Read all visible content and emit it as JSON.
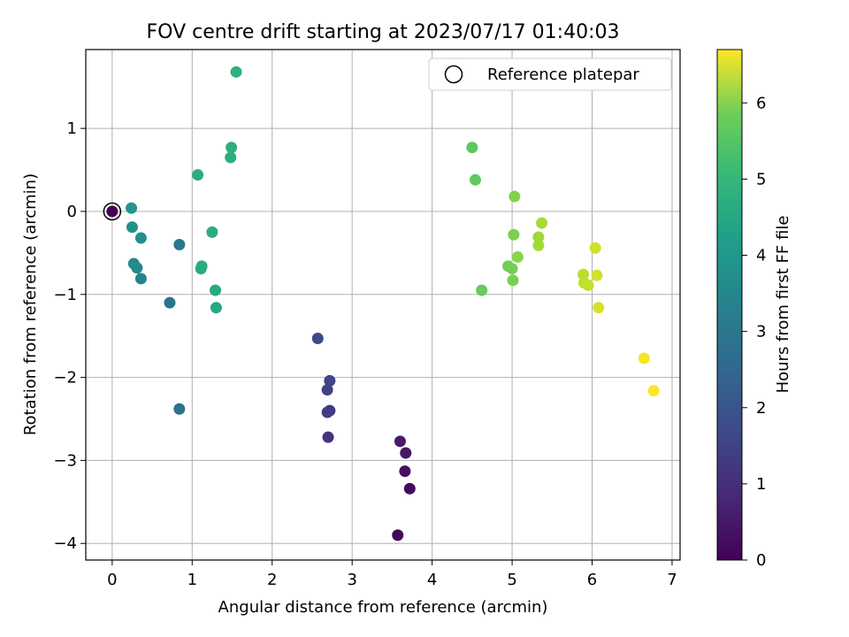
{
  "chart_data": {
    "type": "scatter",
    "title": "FOV centre drift starting at 2023/07/17 01:40:03",
    "xlabel": "Angular distance from reference (arcmin)",
    "ylabel": "Rotation from reference (arcmin)",
    "xlim": [
      -0.33,
      7.1
    ],
    "ylim": [
      -4.2,
      1.95
    ],
    "xticks": [
      0,
      1,
      2,
      3,
      4,
      5,
      6,
      7
    ],
    "yticks": [
      1,
      0,
      -1,
      -2,
      -3,
      -4
    ],
    "xtick_labels": [
      "0",
      "1",
      "2",
      "3",
      "4",
      "5",
      "6",
      "7"
    ],
    "ytick_labels": [
      "1",
      "0",
      "−1",
      "−2",
      "−3",
      "−4"
    ],
    "grid": true,
    "legend": {
      "position": "top-right",
      "entries": [
        "Reference platepar"
      ]
    },
    "colorbar": {
      "label": "Hours from first FF file",
      "range": [
        0,
        6.7
      ],
      "ticks": [
        0,
        1,
        2,
        3,
        4,
        5,
        6
      ],
      "tick_labels": [
        "0",
        "1",
        "2",
        "3",
        "4",
        "5",
        "6"
      ],
      "colormap": "viridis"
    },
    "reference_point": {
      "x": 0,
      "y": 0
    },
    "points": [
      {
        "x": 0,
        "y": 0,
        "c": 0
      },
      {
        "x": 3.57,
        "y": -3.9,
        "c": 0.1
      },
      {
        "x": 3.72,
        "y": -3.34,
        "c": 0.2
      },
      {
        "x": 3.66,
        "y": -3.13,
        "c": 0.3
      },
      {
        "x": 3.67,
        "y": -2.91,
        "c": 0.4
      },
      {
        "x": 3.6,
        "y": -2.77,
        "c": 0.5
      },
      {
        "x": 2.7,
        "y": -2.72,
        "c": 1.0
      },
      {
        "x": 2.72,
        "y": -2.4,
        "c": 1.1
      },
      {
        "x": 2.69,
        "y": -2.42,
        "c": 1.2
      },
      {
        "x": 2.69,
        "y": -2.15,
        "c": 1.3
      },
      {
        "x": 2.72,
        "y": -2.04,
        "c": 1.4
      },
      {
        "x": 2.57,
        "y": -1.53,
        "c": 1.5
      },
      {
        "x": 0.84,
        "y": -2.38,
        "c": 2.5
      },
      {
        "x": 0.72,
        "y": -1.1,
        "c": 2.6
      },
      {
        "x": 0.84,
        "y": -0.4,
        "c": 2.7
      },
      {
        "x": 0.36,
        "y": -0.81,
        "c": 3.0
      },
      {
        "x": 0.31,
        "y": -0.68,
        "c": 3.1
      },
      {
        "x": 0.27,
        "y": -0.63,
        "c": 3.2
      },
      {
        "x": 0.36,
        "y": -0.32,
        "c": 3.3
      },
      {
        "x": 0.25,
        "y": -0.19,
        "c": 3.4
      },
      {
        "x": 0.24,
        "y": 0.04,
        "c": 3.5
      },
      {
        "x": 1.3,
        "y": -1.16,
        "c": 4.0
      },
      {
        "x": 1.29,
        "y": -0.95,
        "c": 4.05
      },
      {
        "x": 1.12,
        "y": -0.66,
        "c": 4.1
      },
      {
        "x": 1.11,
        "y": -0.69,
        "c": 4.1
      },
      {
        "x": 1.25,
        "y": -0.25,
        "c": 4.15
      },
      {
        "x": 1.07,
        "y": 0.44,
        "c": 4.15
      },
      {
        "x": 1.48,
        "y": 0.65,
        "c": 4.2
      },
      {
        "x": 1.49,
        "y": 0.77,
        "c": 4.2
      },
      {
        "x": 1.55,
        "y": 1.68,
        "c": 4.25
      },
      {
        "x": 4.5,
        "y": 0.77,
        "c": 5.0
      },
      {
        "x": 4.54,
        "y": 0.38,
        "c": 5.05
      },
      {
        "x": 4.62,
        "y": -0.95,
        "c": 5.1
      },
      {
        "x": 4.95,
        "y": -0.66,
        "c": 5.2
      },
      {
        "x": 5.0,
        "y": -0.69,
        "c": 5.25
      },
      {
        "x": 5.01,
        "y": -0.83,
        "c": 5.3
      },
      {
        "x": 5.02,
        "y": -0.28,
        "c": 5.35
      },
      {
        "x": 5.03,
        "y": 0.18,
        "c": 5.4
      },
      {
        "x": 5.07,
        "y": -0.55,
        "c": 5.5
      },
      {
        "x": 5.33,
        "y": -0.31,
        "c": 5.7
      },
      {
        "x": 5.33,
        "y": -0.41,
        "c": 5.75
      },
      {
        "x": 5.37,
        "y": -0.14,
        "c": 5.8
      },
      {
        "x": 5.89,
        "y": -0.76,
        "c": 6.0
      },
      {
        "x": 5.9,
        "y": -0.86,
        "c": 6.05
      },
      {
        "x": 5.95,
        "y": -0.89,
        "c": 6.1
      },
      {
        "x": 6.04,
        "y": -0.44,
        "c": 6.2
      },
      {
        "x": 6.06,
        "y": -0.77,
        "c": 6.25
      },
      {
        "x": 6.08,
        "y": -1.16,
        "c": 6.3
      },
      {
        "x": 6.65,
        "y": -1.77,
        "c": 6.6
      },
      {
        "x": 6.77,
        "y": -2.16,
        "c": 6.7
      }
    ]
  }
}
